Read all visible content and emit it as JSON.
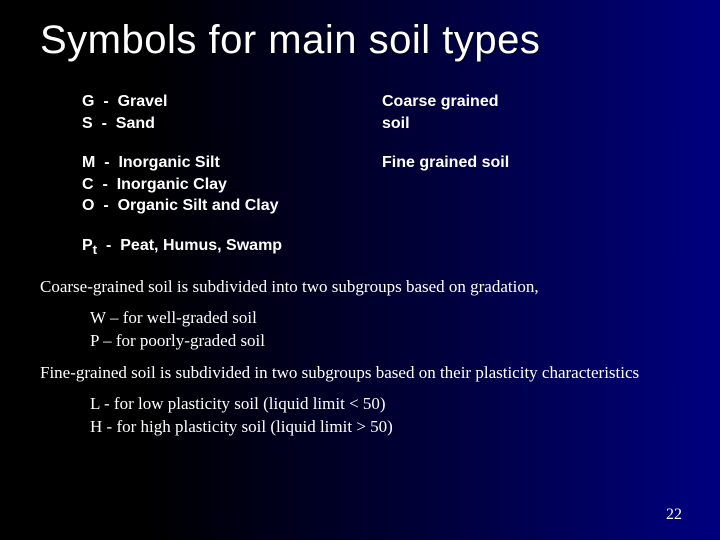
{
  "title": "Symbols for main soil types",
  "symbols": {
    "group1": [
      {
        "code": "G",
        "name": "Gravel"
      },
      {
        "code": "S",
        "name": "Sand"
      }
    ],
    "group1_label": "Coarse grained soil",
    "group2": [
      {
        "code": "M",
        "name": "Inorganic Silt"
      },
      {
        "code": "C",
        "name": " Inorganic Clay"
      },
      {
        "code": "O",
        "name": "Organic Silt and Clay"
      }
    ],
    "group2_label": "Fine grained soil",
    "group3": [
      {
        "code": "P",
        "sub": "t",
        "name": "Peat, Humus, Swamp"
      }
    ]
  },
  "paragraph1": "Coarse-grained soil is subdivided into two subgroups based on gradation,",
  "bullets1": [
    "W – for well-graded soil",
    "P – for poorly-graded soil"
  ],
  "paragraph2": "Fine-grained soil is subdivided in two subgroups based on their plasticity characteristics",
  "bullets2": [
    "L - for low plasticity soil (liquid limit < 50)",
    "H - for high plasticity soil (liquid limit > 50)"
  ],
  "page_number": "22",
  "colors": {
    "background_left": "#000000",
    "background_right": "#000080",
    "text": "#ffffff"
  },
  "fonts": {
    "title_family": "Arial",
    "title_size_pt": 40,
    "symbol_size_pt": 16,
    "body_family": "Times New Roman",
    "body_size_pt": 17
  }
}
